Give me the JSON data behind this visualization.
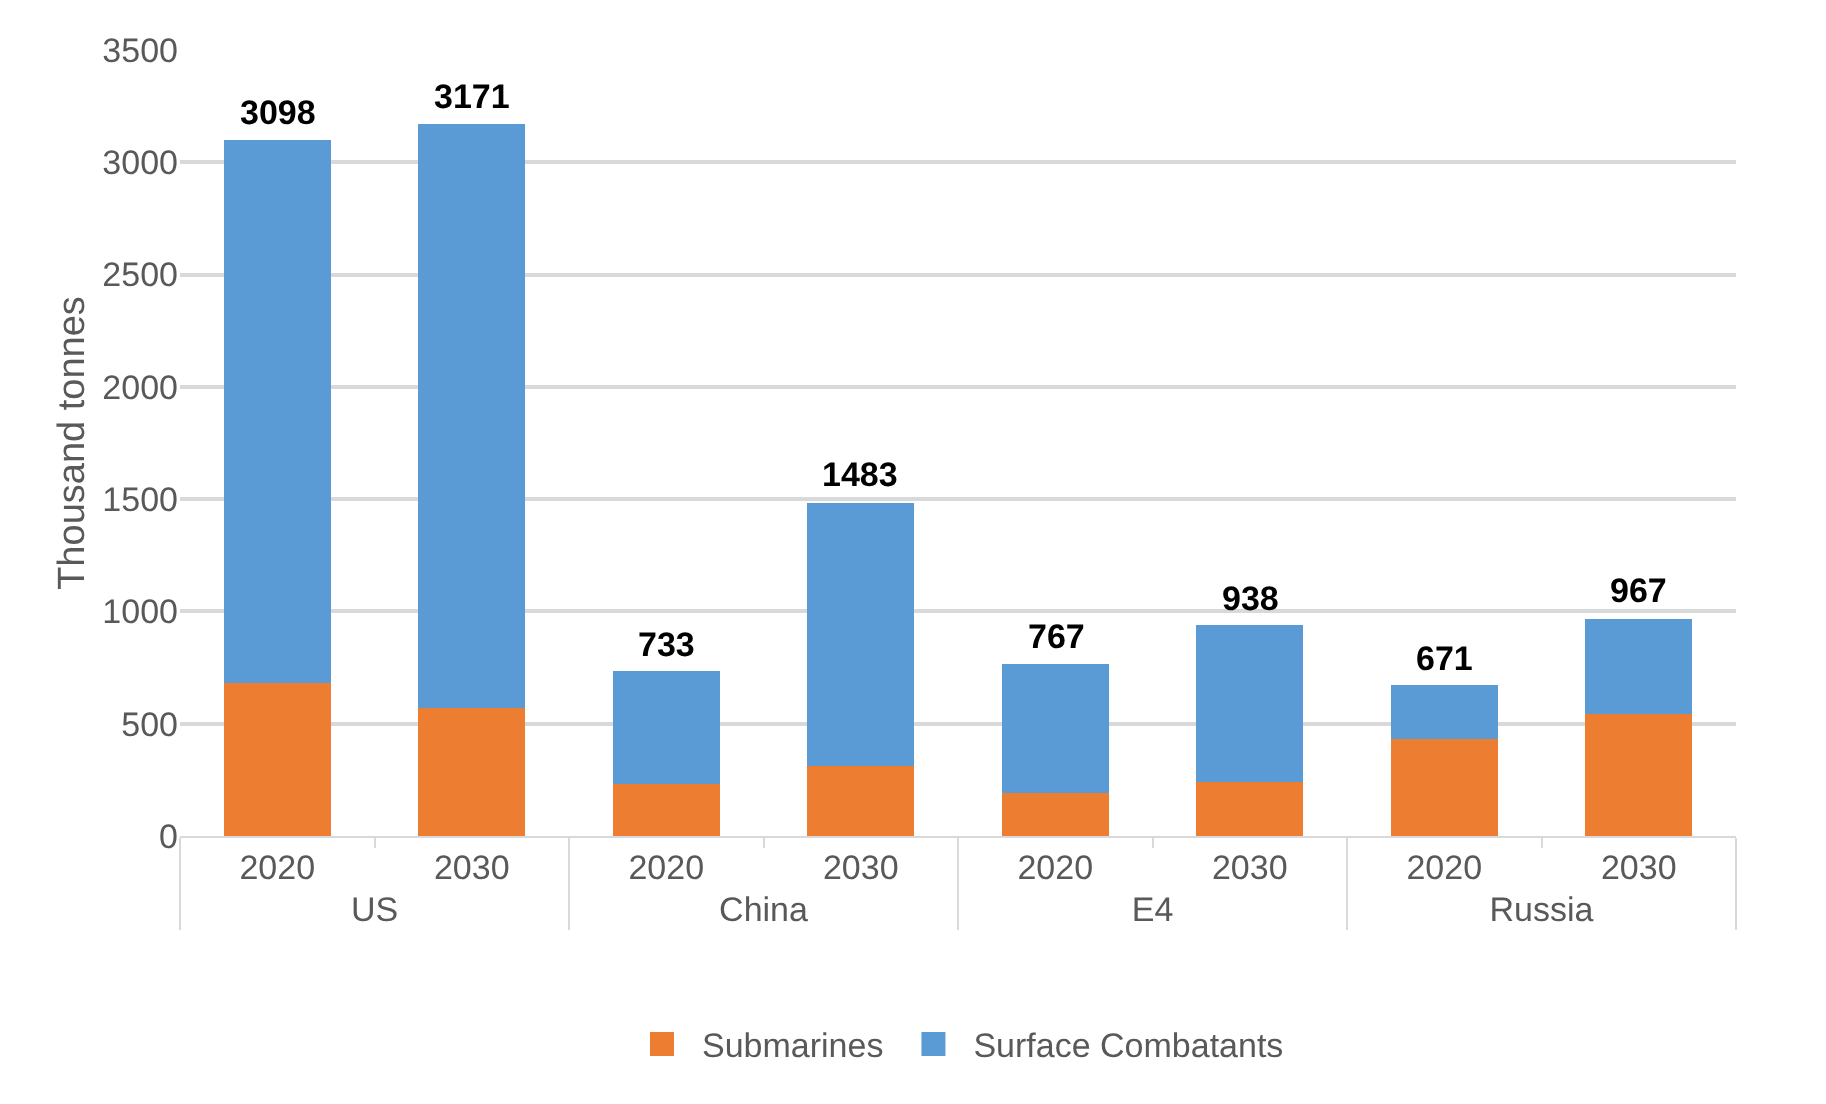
{
  "chart_data": {
    "type": "bar",
    "stacked": true,
    "ylabel": "Thousand tonnes",
    "categories": [
      "2020",
      "2030",
      "2020",
      "2030",
      "2020",
      "2030",
      "2020",
      "2030"
    ],
    "annotations": [
      "US",
      "China",
      "E4",
      "Russia"
    ],
    "series": [
      {
        "name": "Submarines",
        "color": "#ed7d31",
        "values": [
          680,
          570,
          230,
          310,
          190,
          240,
          430,
          545
        ]
      },
      {
        "name": "Surface Combatants",
        "color": "#5b9bd5",
        "values": [
          2418,
          2601,
          503,
          1173,
          577,
          698,
          241,
          422
        ]
      }
    ],
    "totals": [
      "3098",
      "3171",
      "733",
      "1483",
      "767",
      "938",
      "671",
      "967"
    ],
    "ylim": [
      0,
      3500
    ],
    "yticks": [
      0,
      500,
      1000,
      1500,
      2000,
      2500,
      3000,
      3500
    ],
    "grid": "y",
    "legend": "bottom"
  }
}
